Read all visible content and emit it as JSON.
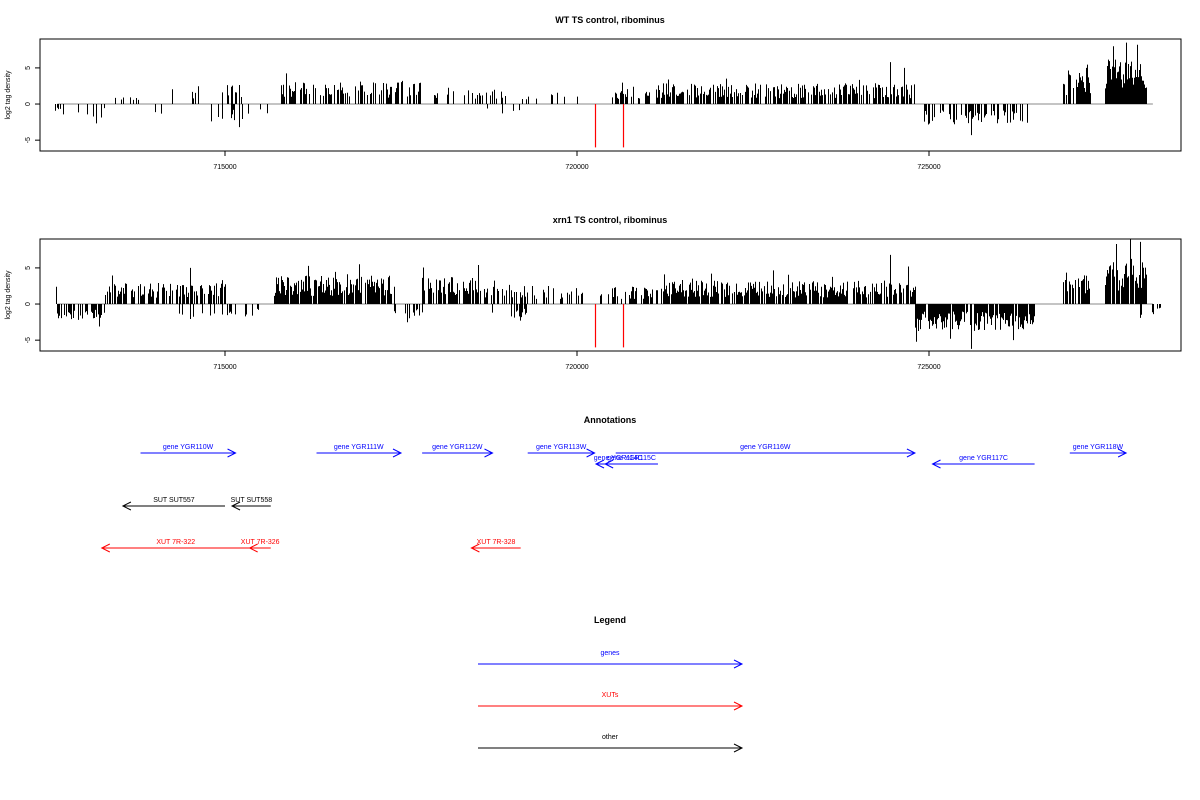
{
  "colors": {
    "genes": "#0000ff",
    "xuts": "#ff0000",
    "other": "#000000",
    "bars": "#000000",
    "redbars": "#ff0000"
  },
  "chart_data": [
    {
      "type": "bar",
      "title": "WT TS control, ribominus",
      "ylabel": "log2 tag density",
      "xlim": [
        712500,
        728600
      ],
      "ylim": [
        -6.5,
        9
      ],
      "xticks": [
        "715000",
        "720000",
        "725000"
      ],
      "yticks": [
        "-5",
        "0",
        "5"
      ],
      "grid": false,
      "segments": [
        {
          "x0": 712570,
          "x1": 712700,
          "sign": -1,
          "base": 0.9,
          "dens": 0.4
        },
        {
          "x0": 712900,
          "x1": 713300,
          "sign": -1,
          "base": 1.5,
          "dens": 0.15
        },
        {
          "x0": 713400,
          "x1": 713900,
          "sign": 1,
          "base": 1.0,
          "dens": 0.1
        },
        {
          "x0": 713800,
          "x1": 714200,
          "sign": -1,
          "base": 1.0,
          "dens": 0.1
        },
        {
          "x0": 714200,
          "x1": 715300,
          "sign": 1,
          "base": 2.2,
          "dens": 0.2
        },
        {
          "x0": 714700,
          "x1": 715600,
          "sign": -1,
          "base": 2.0,
          "dens": 0.12
        },
        {
          "x0": 715800,
          "x1": 716300,
          "sign": 1,
          "base": 2.5,
          "dens": 0.6
        },
        {
          "x0": 716300,
          "x1": 717800,
          "sign": 1,
          "base": 2.5,
          "dens": 0.5
        },
        {
          "x0": 717800,
          "x1": 718300,
          "sign": 1,
          "base": 1.3,
          "dens": 0.15
        },
        {
          "x0": 718400,
          "x1": 719000,
          "sign": 1,
          "base": 1.6,
          "dens": 0.25
        },
        {
          "x0": 718600,
          "x1": 719200,
          "sign": -1,
          "base": 1.4,
          "dens": 0.15
        },
        {
          "x0": 719200,
          "x1": 720000,
          "sign": 1,
          "base": 1.3,
          "dens": 0.15
        },
        {
          "x0": 720500,
          "x1": 721000,
          "sign": 1,
          "base": 2.0,
          "dens": 0.5
        },
        {
          "x0": 721000,
          "x1": 724800,
          "sign": 1,
          "base": 2.3,
          "dens": 0.65
        },
        {
          "x0": 724900,
          "x1": 726400,
          "sign": -1,
          "base": 2.3,
          "dens": 0.5
        },
        {
          "x0": 726900,
          "x1": 727300,
          "sign": 1,
          "base": 3.5,
          "dens": 0.7
        },
        {
          "x0": 727500,
          "x1": 728100,
          "sign": 1,
          "base": 5.0,
          "dens": 0.9
        }
      ],
      "peaks": [
        {
          "x": 724450,
          "y": 5.8
        },
        {
          "x": 724650,
          "y": 5.0
        },
        {
          "x": 727800,
          "y": 8.5
        },
        {
          "x": 727950,
          "y": 8.2
        },
        {
          "x": 727620,
          "y": 8.0
        },
        {
          "x": 725600,
          "y": -4.3
        },
        {
          "x": 715200,
          "y": -3.2
        },
        {
          "x": 714800,
          "y": -2.4
        }
      ],
      "red_bars": [
        {
          "x": 720250,
          "y": -6.0
        },
        {
          "x": 720650,
          "y": -6.0
        }
      ]
    },
    {
      "type": "bar",
      "title": "xrn1 TS control, ribominus",
      "ylabel": "log2 tag density",
      "xlim": [
        712500,
        728600
      ],
      "ylim": [
        -6.5,
        9
      ],
      "xticks": [
        "715000",
        "720000",
        "725000"
      ],
      "yticks": [
        "-5",
        "0",
        "5"
      ],
      "grid": false,
      "segments": [
        {
          "x0": 712600,
          "x1": 713300,
          "sign": -1,
          "base": 1.8,
          "dens": 0.6
        },
        {
          "x0": 713300,
          "x1": 715000,
          "sign": 1,
          "base": 2.3,
          "dens": 0.6
        },
        {
          "x0": 714300,
          "x1": 715600,
          "sign": -1,
          "base": 1.8,
          "dens": 0.25
        },
        {
          "x0": 715700,
          "x1": 717400,
          "sign": 1,
          "base": 3.2,
          "dens": 0.85
        },
        {
          "x0": 717400,
          "x1": 717800,
          "sign": -1,
          "base": 1.8,
          "dens": 0.2
        },
        {
          "x0": 717800,
          "x1": 718600,
          "sign": 1,
          "base": 3.0,
          "dens": 0.8
        },
        {
          "x0": 718600,
          "x1": 719500,
          "sign": 1,
          "base": 2.0,
          "dens": 0.5
        },
        {
          "x0": 718700,
          "x1": 719300,
          "sign": -1,
          "base": 1.6,
          "dens": 0.25
        },
        {
          "x0": 719500,
          "x1": 720100,
          "sign": 1,
          "base": 1.8,
          "dens": 0.4
        },
        {
          "x0": 720300,
          "x1": 721200,
          "sign": 1,
          "base": 2.0,
          "dens": 0.6
        },
        {
          "x0": 721200,
          "x1": 724800,
          "sign": 1,
          "base": 2.6,
          "dens": 0.8
        },
        {
          "x0": 724800,
          "x1": 726500,
          "sign": -1,
          "base": 3.0,
          "dens": 0.85
        },
        {
          "x0": 726900,
          "x1": 727300,
          "sign": 1,
          "base": 3.5,
          "dens": 0.8
        },
        {
          "x0": 727500,
          "x1": 728100,
          "sign": 1,
          "base": 5.0,
          "dens": 0.9
        },
        {
          "x0": 728000,
          "x1": 728300,
          "sign": -1,
          "base": 1.2,
          "dens": 0.4
        }
      ],
      "peaks": [
        {
          "x": 712600,
          "y": 2.4
        },
        {
          "x": 724450,
          "y": 6.8
        },
        {
          "x": 724700,
          "y": 5.2
        },
        {
          "x": 727850,
          "y": 9.0
        },
        {
          "x": 727650,
          "y": 8.3
        },
        {
          "x": 728000,
          "y": 8.6
        },
        {
          "x": 725600,
          "y": -6.2
        },
        {
          "x": 725300,
          "y": -4.8
        },
        {
          "x": 726200,
          "y": -5.0
        },
        {
          "x": 716900,
          "y": 5.5
        },
        {
          "x": 714500,
          "y": 5.0
        }
      ],
      "red_bars": [
        {
          "x": 720250,
          "y": -6.0
        },
        {
          "x": 720650,
          "y": -6.0
        }
      ]
    }
  ],
  "annotations": {
    "title": "Annotations",
    "genes": [
      {
        "label": "gene YGR110W",
        "start": 713800,
        "end": 715150,
        "dir": "right",
        "row": 0
      },
      {
        "label": "gene YGR111W",
        "start": 716300,
        "end": 717500,
        "dir": "right",
        "row": 0
      },
      {
        "label": "gene YGR112W",
        "start": 717800,
        "end": 718800,
        "dir": "right",
        "row": 0
      },
      {
        "label": "gene YGR113W",
        "start": 719300,
        "end": 720250,
        "dir": "right",
        "row": 0
      },
      {
        "label": "gene YGR114C",
        "start": 720270,
        "end": 720900,
        "dir": "left",
        "row": 1
      },
      {
        "label": "gene YGR115C",
        "start": 720400,
        "end": 721150,
        "dir": "left",
        "row": 1
      },
      {
        "label": "gene YGR116W",
        "start": 720550,
        "end": 724800,
        "dir": "right",
        "row": 0
      },
      {
        "label": "gene YGR117C",
        "start": 725050,
        "end": 726500,
        "dir": "left",
        "row": 1
      },
      {
        "label": "gene YGR118W",
        "start": 727000,
        "end": 727800,
        "dir": "right",
        "row": 0
      }
    ],
    "other": [
      {
        "label": "SUT SUT557",
        "start": 713550,
        "end": 715000,
        "dir": "left"
      },
      {
        "label": "SUT SUT558",
        "start": 715100,
        "end": 715650,
        "dir": "left"
      }
    ],
    "xuts": [
      {
        "label": "XUT 7R-322",
        "start": 713250,
        "end": 715350,
        "dir": "left"
      },
      {
        "label": "XUT 7R-326",
        "start": 715350,
        "end": 715650,
        "dir": "left"
      },
      {
        "label": "XUT 7R-328",
        "start": 718500,
        "end": 719200,
        "dir": "left"
      }
    ]
  },
  "legend": {
    "title": "Legend",
    "items": [
      {
        "label": "genes",
        "color": "#0000ff"
      },
      {
        "label": "XUTs",
        "color": "#ff0000"
      },
      {
        "label": "other",
        "color": "#000000"
      }
    ]
  }
}
